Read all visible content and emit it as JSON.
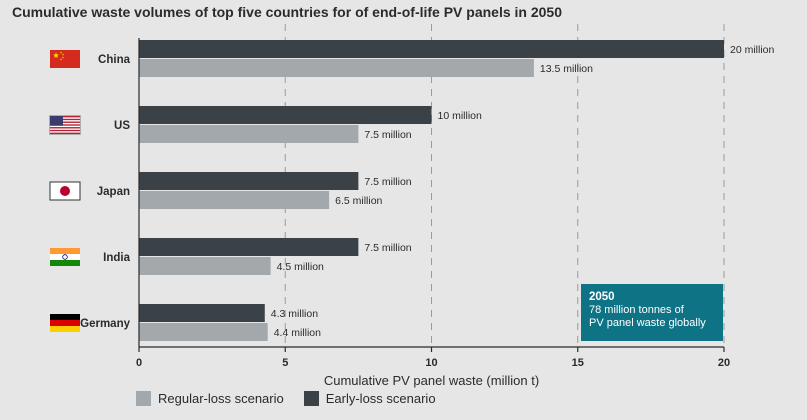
{
  "title": "Cumulative waste volumes of top five countries for of end-of-life PV panels in 2050",
  "colors": {
    "background": "#e6e6e6",
    "regular": "#a3a8ad",
    "early": "#3a4147",
    "annotation_bg": "#0f7386",
    "grid": "#9a9a9a"
  },
  "chart_data": {
    "type": "bar",
    "orientation": "horizontal",
    "categories": [
      "China",
      "US",
      "Japan",
      "India",
      "Germany"
    ],
    "flags": [
      "china-flag-icon",
      "us-flag-icon",
      "japan-flag-icon",
      "india-flag-icon",
      "germany-flag-icon"
    ],
    "series": [
      {
        "name": "Early-loss scenario",
        "values": [
          20,
          10,
          7.5,
          7.5,
          4.3
        ],
        "labels": [
          "20 million",
          "10 million",
          "7.5 million",
          "7.5 million",
          "4.3 million"
        ]
      },
      {
        "name": "Regular-loss scenario",
        "values": [
          13.5,
          7.5,
          6.5,
          4.5,
          4.4
        ],
        "labels": [
          "13.5 million",
          "7.5 million",
          "6.5 million",
          "4.5 million",
          "4.4 million"
        ]
      }
    ],
    "xlabel": "Cumulative PV panel waste (million t)",
    "xlim": [
      0,
      20
    ],
    "xticks": [
      0,
      5,
      10,
      15,
      20
    ],
    "grid": "vertical dashed",
    "legend_position": "bottom-left",
    "legend": [
      "Regular-loss scenario",
      "Early-loss scenario"
    ]
  },
  "annotation": {
    "year": "2050",
    "line1": "78 million tonnes of",
    "line2": "PV panel waste globally"
  }
}
